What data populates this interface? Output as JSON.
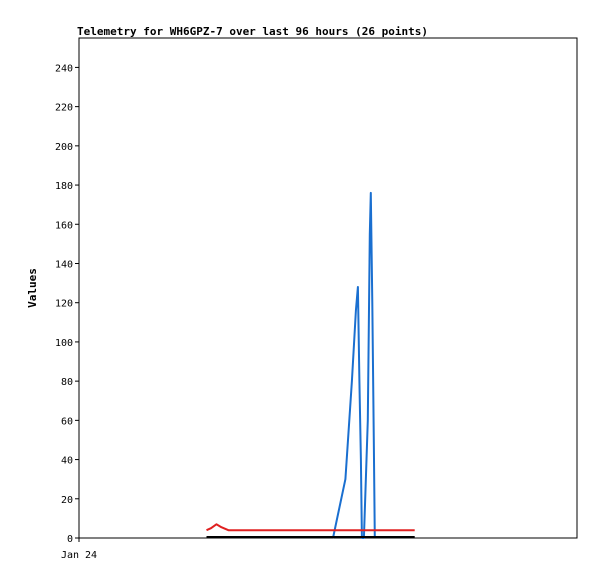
{
  "chart_data": {
    "type": "line",
    "title": "Telemetry for WH6GPZ-7 over last 96 hours (26 points)",
    "ylabel": "Values",
    "xlabel": "",
    "ylim": [
      0,
      255
    ],
    "yticks": [
      0,
      20,
      40,
      60,
      80,
      100,
      120,
      140,
      160,
      180,
      200,
      220,
      240
    ],
    "xlim": [
      0,
      100
    ],
    "xticks": [
      {
        "x": 0,
        "label": "Jan 24"
      }
    ],
    "grid": false,
    "legend": "none",
    "series": [
      {
        "color": "#1a6fd0",
        "points": [
          [
            51,
            0
          ],
          [
            53.5,
            30
          ],
          [
            54.8,
            80
          ],
          [
            55.6,
            116
          ],
          [
            56,
            128
          ],
          [
            56.3,
            80
          ],
          [
            56.6,
            40
          ],
          [
            56.8,
            0
          ],
          [
            57.2,
            0
          ],
          [
            58,
            60
          ],
          [
            58.4,
            155
          ],
          [
            58.6,
            176
          ],
          [
            58.9,
            120
          ],
          [
            59.2,
            50
          ],
          [
            59.4,
            0
          ]
        ]
      },
      {
        "color": "#e02020",
        "points": [
          [
            25.6,
            4
          ],
          [
            26.5,
            5
          ],
          [
            27.6,
            7
          ],
          [
            28.6,
            5.5
          ],
          [
            30,
            4
          ],
          [
            40,
            4
          ],
          [
            50,
            4
          ],
          [
            60,
            4
          ],
          [
            67.4,
            4
          ]
        ]
      },
      {
        "color": "#000000",
        "points": [
          [
            25.6,
            0.5
          ],
          [
            67.4,
            0.5
          ]
        ]
      }
    ]
  }
}
